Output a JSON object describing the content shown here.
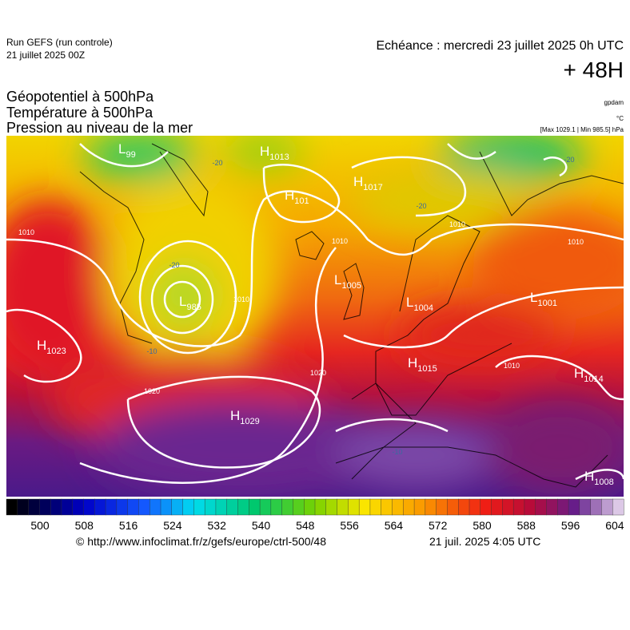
{
  "header": {
    "run": "Run GEFS (run controle)",
    "run_date": "21 juillet 2025 00Z",
    "forecast": "Echéance : mercredi 23 juillet 2025 0h UTC",
    "lead": "+ 48H",
    "title_lines": [
      "Géopotentiel à 500hPa",
      "Température à 500hPa",
      "Pression au niveau de la mer"
    ],
    "units": [
      "gpdam",
      "°C",
      "[Max 1029.1 | Min 985.5] hPa"
    ]
  },
  "pressure_centers": [
    {
      "letter": "L",
      "value": "99"
    },
    {
      "letter": "H",
      "value": "1013"
    },
    {
      "letter": "H",
      "value": "101"
    },
    {
      "letter": "H",
      "value": "1017"
    },
    {
      "letter": "L",
      "value": "1005"
    },
    {
      "letter": "L",
      "value": "985"
    },
    {
      "letter": "L",
      "value": "1004"
    },
    {
      "letter": "H",
      "value": "1023"
    },
    {
      "letter": "H",
      "value": "1029"
    },
    {
      "letter": "H",
      "value": "1015"
    },
    {
      "letter": "L",
      "value": "1001"
    },
    {
      "letter": "H",
      "value": "1014"
    },
    {
      "letter": "H",
      "value": "1008"
    }
  ],
  "isobar_labels": [
    "1010",
    "1020",
    "1020",
    "1010",
    "1010",
    "1010",
    "1010",
    "1010"
  ],
  "isotherm_labels": [
    "-20",
    "-20",
    "-20",
    "-20",
    "-10",
    "-10"
  ],
  "colorbar": {
    "labels": [
      "500",
      "508",
      "516",
      "524",
      "532",
      "540",
      "548",
      "556",
      "564",
      "572",
      "580",
      "588",
      "596",
      "604"
    ]
  },
  "footer": {
    "source": "© http://www.infoclimat.fr/z/gefs/europe/ctrl-500/48",
    "generated": "21 juil. 2025  4:05 UTC"
  }
}
